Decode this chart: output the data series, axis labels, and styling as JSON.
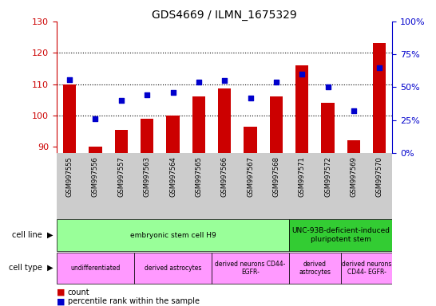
{
  "title": "GDS4669 / ILMN_1675329",
  "samples": [
    "GSM997555",
    "GSM997556",
    "GSM997557",
    "GSM997563",
    "GSM997564",
    "GSM997565",
    "GSM997566",
    "GSM997567",
    "GSM997568",
    "GSM997571",
    "GSM997572",
    "GSM997569",
    "GSM997570"
  ],
  "counts": [
    110,
    90,
    95.5,
    99,
    100,
    106,
    108.5,
    96.5,
    106,
    116,
    104,
    92,
    123
  ],
  "percentiles": [
    56,
    26,
    40,
    44,
    46,
    54,
    55,
    42,
    54,
    60,
    50,
    32,
    65
  ],
  "ylim_left": [
    88,
    130
  ],
  "ylim_right": [
    0,
    100
  ],
  "yticks_left": [
    90,
    100,
    110,
    120,
    130
  ],
  "yticks_right": [
    0,
    25,
    50,
    75,
    100
  ],
  "yticklabels_right": [
    "0%",
    "25%",
    "50%",
    "75%",
    "100%"
  ],
  "bar_color": "#cc0000",
  "dot_color": "#0000cc",
  "cell_line_groups": [
    {
      "label": "embryonic stem cell H9",
      "start": 0,
      "end": 9,
      "color": "#99ff99"
    },
    {
      "label": "UNC-93B-deficient-induced\npluripotent stem",
      "start": 9,
      "end": 13,
      "color": "#33cc33"
    }
  ],
  "cell_type_groups": [
    {
      "label": "undifferentiated",
      "start": 0,
      "end": 3,
      "color": "#ff99ff"
    },
    {
      "label": "derived astrocytes",
      "start": 3,
      "end": 6,
      "color": "#ff99ff"
    },
    {
      "label": "derived neurons CD44-\nEGFR-",
      "start": 6,
      "end": 9,
      "color": "#ff99ff"
    },
    {
      "label": "derived\nastrocytes",
      "start": 9,
      "end": 11,
      "color": "#ff99ff"
    },
    {
      "label": "derived neurons\nCD44- EGFR-",
      "start": 11,
      "end": 13,
      "color": "#ff99ff"
    }
  ],
  "legend_count_color": "#cc0000",
  "legend_pct_color": "#0000cc"
}
